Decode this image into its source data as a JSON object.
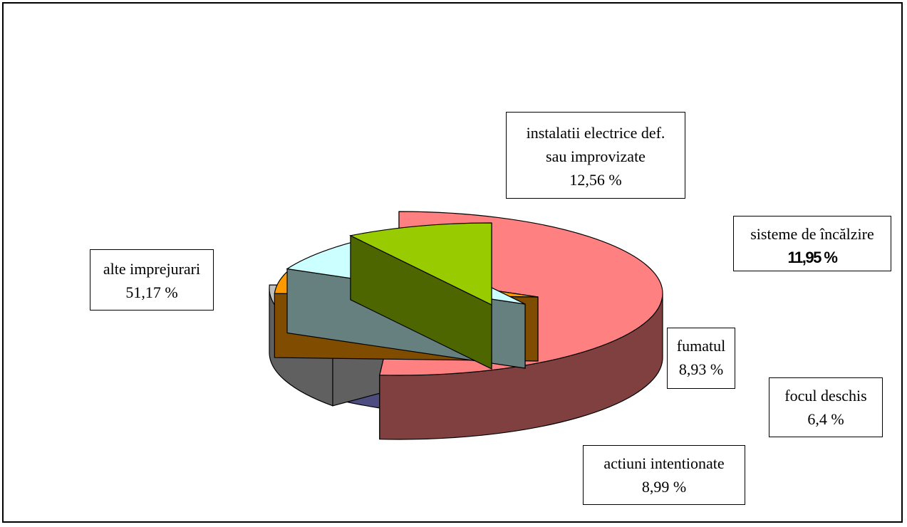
{
  "chart_data": {
    "type": "pie",
    "style": "3d-exploded",
    "slices": [
      {
        "id": "alte",
        "label": "alte imprejurari",
        "value": 51.17,
        "value_label": "51,17 %",
        "top_color": "#FF8080",
        "side_color": "#804040"
      },
      {
        "id": "instalatii",
        "label": "instalatii electrice def. sau improvizate",
        "label_lines": [
          "instalatii electrice def.",
          "sau improvizate"
        ],
        "value": 12.56,
        "value_label": "12,56 %",
        "top_color": "#9999FF",
        "side_color": "#4D4D80"
      },
      {
        "id": "sisteme",
        "label": "sisteme de încălzire",
        "label_lines": [
          "sisteme de încălzire"
        ],
        "value": 11.95,
        "value_label": "11,95 %",
        "value_bold": true,
        "top_color": "#C0C0C0",
        "side_color": "#606060"
      },
      {
        "id": "focul",
        "label": "focul deschis",
        "label_lines": [
          "focul deschis"
        ],
        "value": 6.4,
        "value_label": "6,4 %",
        "top_color": "#FF9900",
        "side_color": "#804D00"
      },
      {
        "id": "fumatul",
        "label": "fumatul",
        "label_lines": [
          "fumatul"
        ],
        "value": 8.93,
        "value_label": "8,93 %",
        "top_color": "#CCFFFF",
        "side_color": "#668080"
      },
      {
        "id": "actiuni",
        "label": "actiuni intentionate",
        "label_lines": [
          "actiuni intentionate"
        ],
        "value": 8.99,
        "value_label": "8,99 %",
        "top_color": "#99CC00",
        "side_color": "#4D6600"
      }
    ],
    "legend": "none",
    "title": ""
  }
}
